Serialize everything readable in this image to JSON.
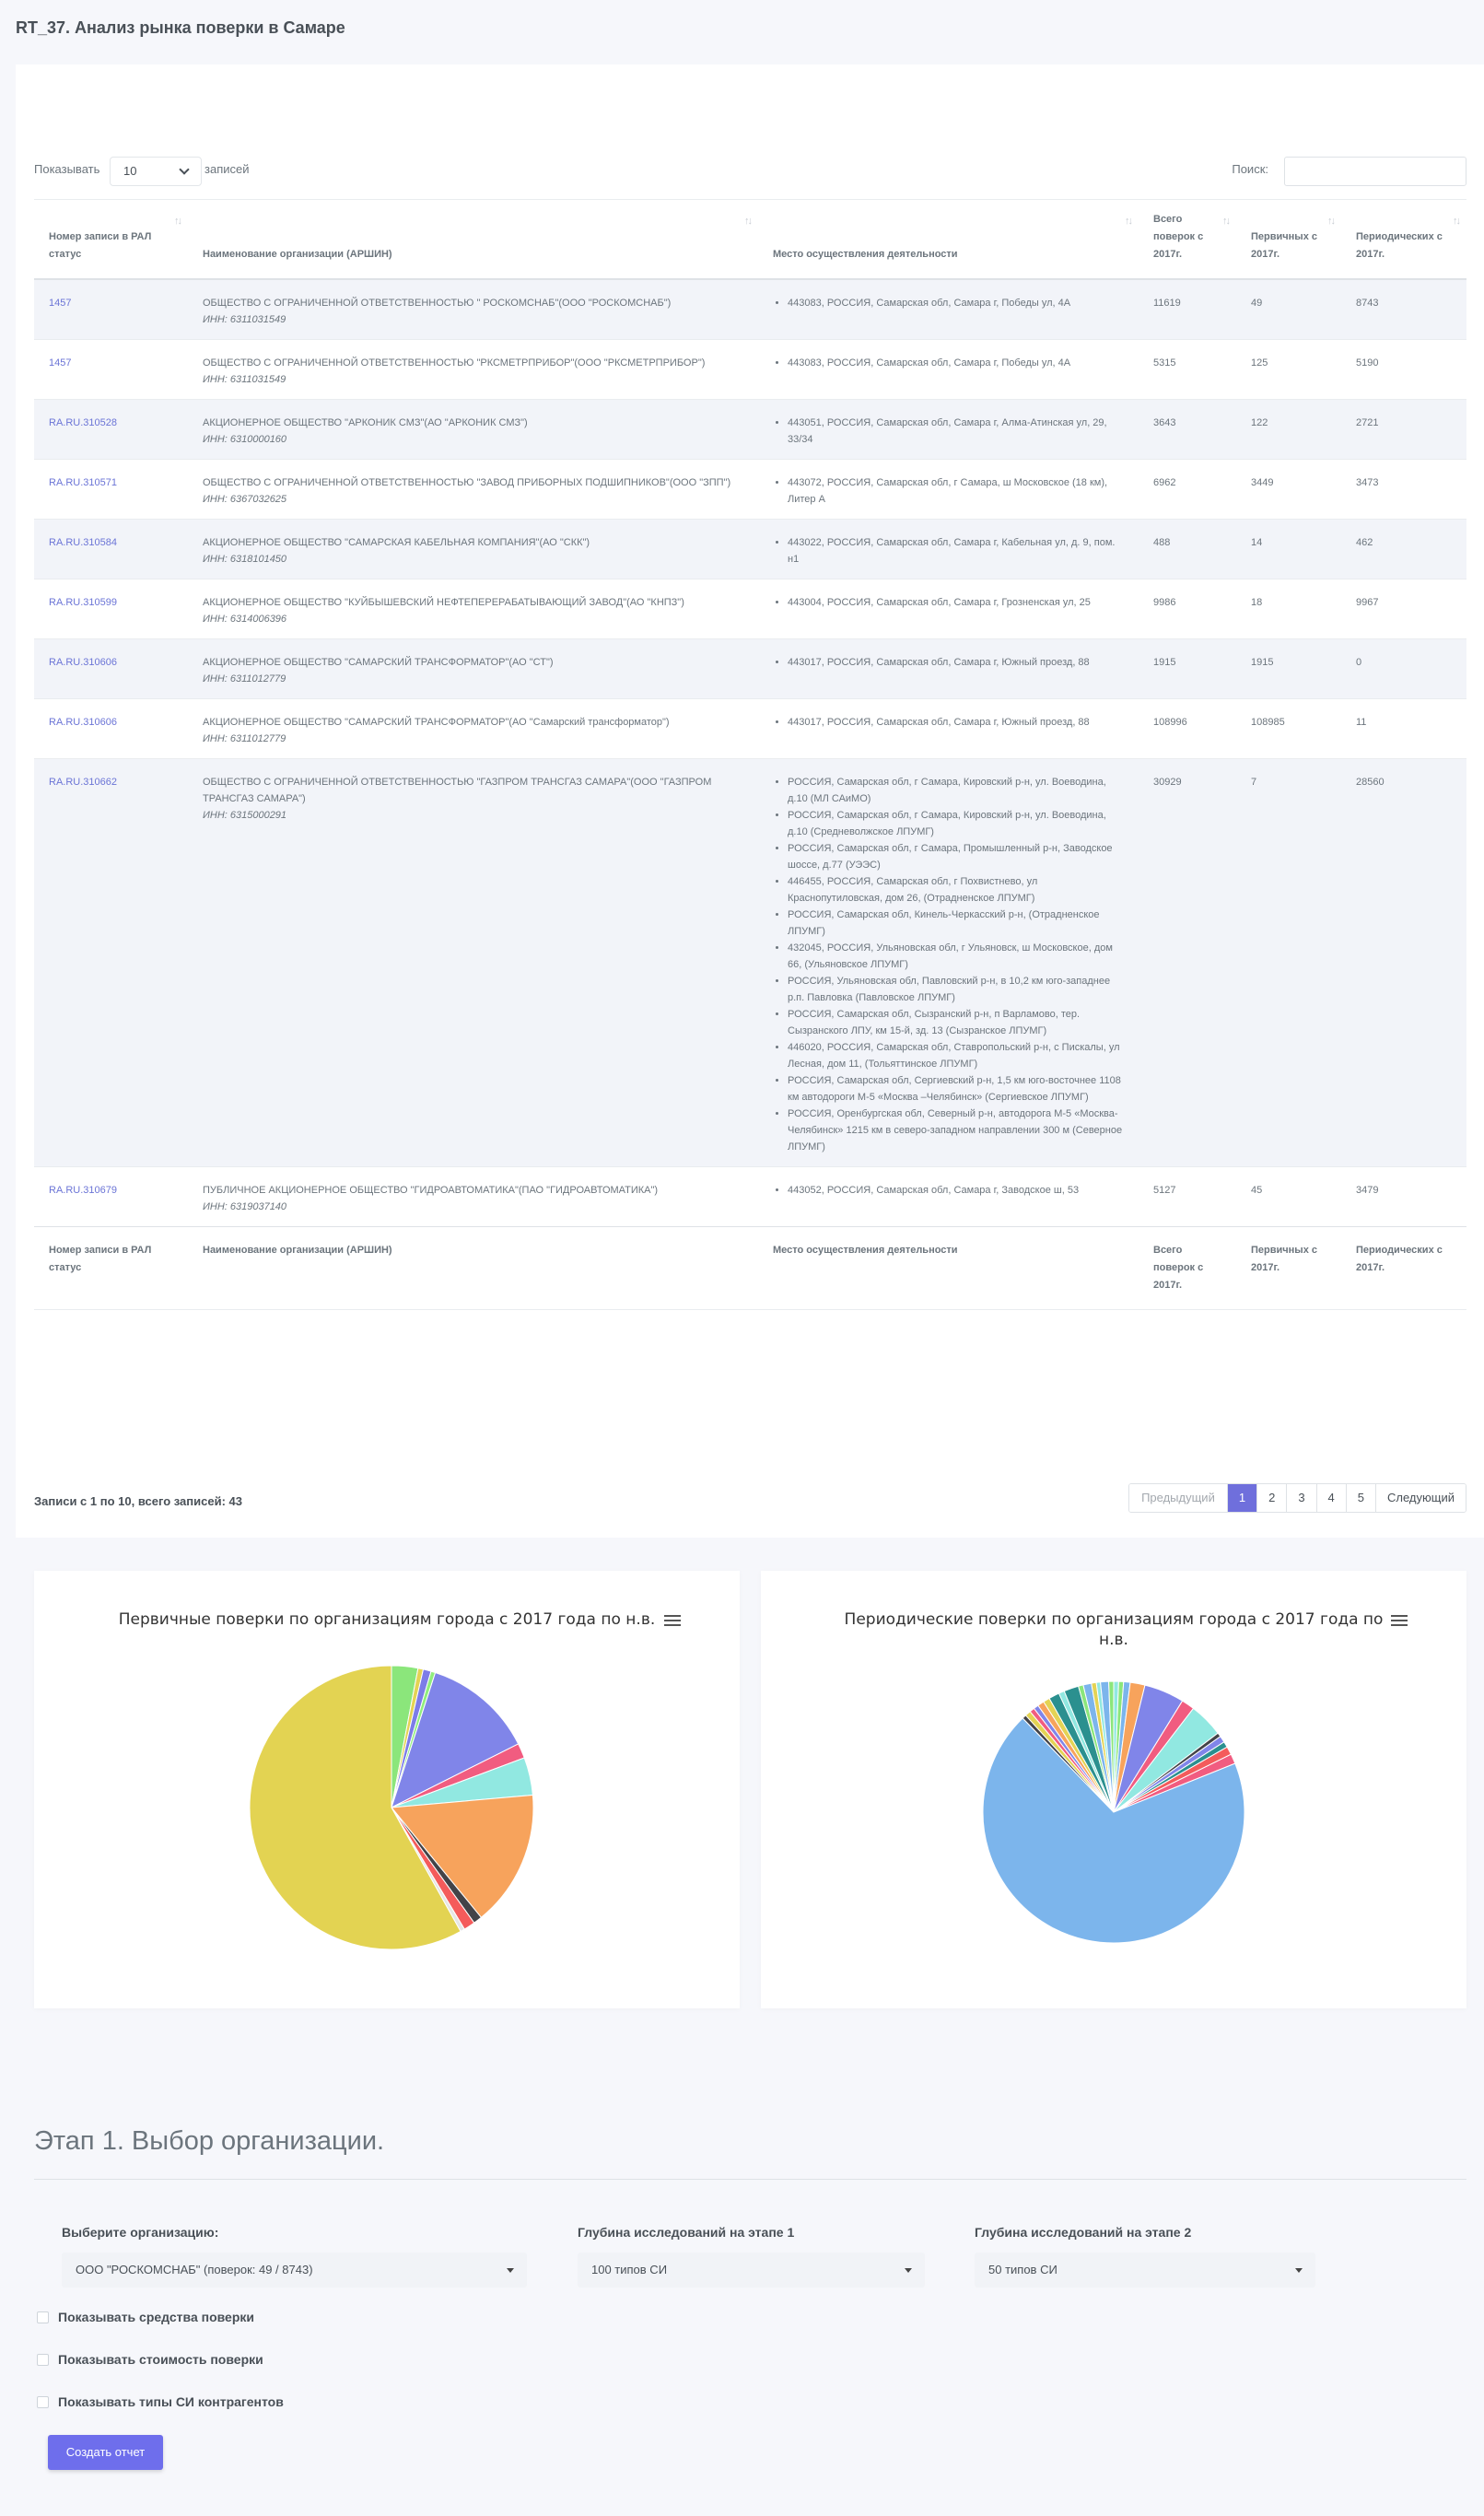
{
  "page": {
    "title": "RT_37. Анализ рынка поверки в Самаре"
  },
  "table_controls": {
    "show_label": "Показывать",
    "page_size": "10",
    "records_label": "записей",
    "search_label": "Поиск:",
    "search_value": ""
  },
  "table": {
    "headers": [
      "Номер записи в РАЛ статус",
      "Наименование организации (АРШИН)",
      "Место осуществления деятельности",
      "Всего поверок с 2017г.",
      "Первичных с 2017г.",
      "Периодических с 2017г."
    ],
    "rows": [
      {
        "reg": "1457",
        "org": "ОБЩЕСТВО С ОГРАНИЧЕННОЙ ОТВЕТСТВЕННОСТЬЮ \" РОСКОМСНАБ\"(ООО \"РОСКОМСНАБ\")",
        "inn": "ИНН: 6311031549",
        "places": [
          "443083, РОССИЯ, Самарская обл, Самара г, Победы ул, 4А"
        ],
        "total": "11619",
        "primary": "49",
        "periodic": "8743"
      },
      {
        "reg": "1457",
        "org": "ОБЩЕСТВО С ОГРАНИЧЕННОЙ ОТВЕТСТВЕННОСТЬЮ \"РКСМЕТРПРИБОР\"(ООО \"РКСМЕТРПРИБОР\")",
        "inn": "ИНН: 6311031549",
        "places": [
          "443083, РОССИЯ, Самарская обл, Самара г, Победы ул, 4А"
        ],
        "total": "5315",
        "primary": "125",
        "periodic": "5190"
      },
      {
        "reg": "RA.RU.310528",
        "org": "АКЦИОНЕРНОЕ ОБЩЕСТВО \"АРКОНИК СМЗ\"(АО \"АРКОНИК СМЗ\")",
        "inn": "ИНН: 6310000160",
        "places": [
          "443051, РОССИЯ, Самарская обл, Самара г, Алма-Атинская ул, 29, 33/34"
        ],
        "total": "3643",
        "primary": "122",
        "periodic": "2721"
      },
      {
        "reg": "RA.RU.310571",
        "org": "ОБЩЕСТВО С ОГРАНИЧЕННОЙ ОТВЕТСТВЕННОСТЬЮ \"ЗАВОД ПРИБОРНЫХ ПОДШИПНИКОВ\"(ООО \"ЗПП\")",
        "inn": "ИНН: 6367032625",
        "places": [
          "443072, РОССИЯ, Самарская обл, г Самара, ш Московское (18 км), Литер А"
        ],
        "total": "6962",
        "primary": "3449",
        "periodic": "3473"
      },
      {
        "reg": "RA.RU.310584",
        "org": "АКЦИОНЕРНОЕ ОБЩЕСТВО \"САМАРСКАЯ КАБЕЛЬНАЯ КОМПАНИЯ\"(АО \"СКК\")",
        "inn": "ИНН: 6318101450",
        "places": [
          "443022, РОССИЯ, Самарская обл, Самара г, Кабельная ул, д. 9, пом. н1"
        ],
        "total": "488",
        "primary": "14",
        "periodic": "462"
      },
      {
        "reg": "RA.RU.310599",
        "org": "АКЦИОНЕРНОЕ ОБЩЕСТВО \"КУЙБЫШЕВСКИЙ НЕФТЕПЕРЕРАБАТЫВАЮЩИЙ ЗАВОД\"(АО \"КНПЗ\")",
        "inn": "ИНН: 6314006396",
        "places": [
          "443004, РОССИЯ, Самарская обл, Самара г, Грозненская ул, 25"
        ],
        "total": "9986",
        "primary": "18",
        "periodic": "9967"
      },
      {
        "reg": "RA.RU.310606",
        "org": "АКЦИОНЕРНОЕ ОБЩЕСТВО \"САМАРСКИЙ ТРАНСФОРМАТОР\"(АО \"СТ\")",
        "inn": "ИНН: 6311012779",
        "places": [
          "443017, РОССИЯ, Самарская обл, Самара г, Южный проезд, 88"
        ],
        "total": "1915",
        "primary": "1915",
        "periodic": "0"
      },
      {
        "reg": "RA.RU.310606",
        "org": "АКЦИОНЕРНОЕ ОБЩЕСТВО \"САМАРСКИЙ ТРАНСФОРМАТОР\"(АО \"Самарский трансформатор\")",
        "inn": "ИНН: 6311012779",
        "places": [
          "443017, РОССИЯ, Самарская обл, Самара г, Южный проезд, 88"
        ],
        "total": "108996",
        "primary": "108985",
        "periodic": "11"
      },
      {
        "reg": "RA.RU.310662",
        "org": "ОБЩЕСТВО С ОГРАНИЧЕННОЙ ОТВЕТСТВЕННОСТЬЮ \"ГАЗПРОМ ТРАНСГАЗ САМАРА\"(ООО \"ГАЗПРОМ ТРАНСГАЗ САМАРА\")",
        "inn": "ИНН: 6315000291",
        "places": [
          "РОССИЯ, Самарская обл, г Самара, Кировский р-н, ул. Воеводина, д.10 (МЛ САиМО)",
          "РОССИЯ, Самарская обл, г Самара, Кировский р-н, ул. Воеводина, д.10 (Средневолжское ЛПУМГ)",
          "РОССИЯ, Самарская обл, г Самара, Промышленный р-н, Заводское шоссе, д.77 (УЭЭС)",
          "446455, РОССИЯ, Самарская обл, г Похвистнево, ул Краснопутиловская, дом 26, (Отрадненское ЛПУМГ)",
          "РОССИЯ, Самарская обл, Кинель-Черкасский р-н, (Отрадненское ЛПУМГ)",
          "432045, РОССИЯ, Ульяновская обл, г Ульяновск, ш Московское, дом 66, (Ульяновское ЛПУМГ)",
          "РОССИЯ, Ульяновская обл, Павловский р-н, в 10,2 км юго-западнее р.п. Павловка (Павловское ЛПУМГ)",
          "РОССИЯ, Самарская обл, Сызранский р-н, п Варламово, тер. Сызранского ЛПУ, км 15-й, зд. 13 (Сызранское ЛПУМГ)",
          "446020, РОССИЯ, Самарская обл, Ставропольский р-н, с Пискалы, ул Лесная, дом 11, (Тольяттинское ЛПУМГ)",
          "РОССИЯ, Самарская обл, Сергиевский р-н, 1,5 км юго-восточнее 1108 км автодороги М-5 «Москва –Челябинск» (Сергиевское ЛПУМГ)",
          "РОССИЯ, Оренбургская обл, Северный р-н, автодорога М-5 «Москва-Челябинск» 1215 км в северо-западном направлении 300 м (Северное ЛПУМГ)"
        ],
        "total": "30929",
        "primary": "7",
        "periodic": "28560"
      },
      {
        "reg": "RA.RU.310679",
        "org": "ПУБЛИЧНОЕ АКЦИОНЕРНОЕ ОБЩЕСТВО \"ГИДРОАВТОМАТИКА\"(ПАО \"ГИДРОАВТОМАТИКА\")",
        "inn": "ИНН: 6319037140",
        "places": [
          "443052, РОССИЯ, Самарская обл, Самара г, Заводское ш, 53"
        ],
        "total": "5127",
        "primary": "45",
        "periodic": "3479"
      }
    ]
  },
  "pagination": {
    "info": "Записи с 1 по 10, всего записей: 43",
    "prev": "Предыдущий",
    "pages": [
      "1",
      "2",
      "3",
      "4",
      "5"
    ],
    "active": "1",
    "next": "Следующий"
  },
  "charts": {
    "primary_title": "Первичные поверки по организациям города с 2017 года по н.в.",
    "periodic_title_line1": "Периодические поверки по организациям города с 2017 года по",
    "periodic_title_line2": "н.в."
  },
  "chart_data": [
    {
      "type": "pie",
      "title": "Первичные поверки по организациям города с 2017 года по н.в.",
      "slices": [
        {
          "value": 3.0,
          "color": "#8be67b"
        },
        {
          "value": 0.6,
          "color": "#e4d354"
        },
        {
          "value": 0.9,
          "color": "#7c7ce8"
        },
        {
          "value": 0.5,
          "color": "#90ed7d"
        },
        {
          "value": 12.6,
          "color": "#8085e9"
        },
        {
          "value": 1.7,
          "color": "#f15c80"
        },
        {
          "value": 4.3,
          "color": "#91e8e1"
        },
        {
          "value": 15.5,
          "color": "#f7a35c"
        },
        {
          "value": 1.0,
          "color": "#434348"
        },
        {
          "value": 1.3,
          "color": "#f45b5b"
        },
        {
          "value": 0.5,
          "color": "#e6e6e6"
        },
        {
          "value": 58.1,
          "color": "#e3d352"
        }
      ]
    },
    {
      "type": "pie",
      "title": "Периодические поверки по организациям города с 2017 года по н.в.",
      "slices": [
        {
          "value": 0.6,
          "color": "#91e8e1"
        },
        {
          "value": 0.6,
          "color": "#8be67b"
        },
        {
          "value": 0.8,
          "color": "#7cb5ec"
        },
        {
          "value": 1.8,
          "color": "#f7a35c"
        },
        {
          "value": 4.9,
          "color": "#8085e9"
        },
        {
          "value": 1.6,
          "color": "#f15c80"
        },
        {
          "value": 4.2,
          "color": "#91e8e1"
        },
        {
          "value": 0.5,
          "color": "#434348"
        },
        {
          "value": 0.8,
          "color": "#8085e9"
        },
        {
          "value": 0.7,
          "color": "#2b908f"
        },
        {
          "value": 1.0,
          "color": "#f45b5b"
        },
        {
          "value": 1.2,
          "color": "#f15c80"
        },
        {
          "value": 68.0,
          "color": "#7cb5ec"
        },
        {
          "value": 0.5,
          "color": "#434348"
        },
        {
          "value": 0.7,
          "color": "#e4d354"
        },
        {
          "value": 0.6,
          "color": "#f15c80"
        },
        {
          "value": 0.6,
          "color": "#8085e9"
        },
        {
          "value": 0.8,
          "color": "#f7a35c"
        },
        {
          "value": 0.8,
          "color": "#e4d354"
        },
        {
          "value": 1.3,
          "color": "#2b908f"
        },
        {
          "value": 0.7,
          "color": "#91e8e1"
        },
        {
          "value": 1.8,
          "color": "#2b908f"
        },
        {
          "value": 0.6,
          "color": "#8be67b"
        },
        {
          "value": 1.0,
          "color": "#7cb5ec"
        },
        {
          "value": 0.6,
          "color": "#e4d354"
        },
        {
          "value": 0.5,
          "color": "#91e8e1"
        },
        {
          "value": 1.0,
          "color": "#7cb5ec"
        },
        {
          "value": 0.6,
          "color": "#8be67b"
        }
      ]
    }
  ],
  "stage": {
    "title": "Этап 1. Выбор организации.",
    "org_label": "Выберите организацию:",
    "org_value": "ООО \"РОСКОМСНАБ\" (поверок: 49 / 8743)",
    "depth1_label": "Глубина исследований на этапе 1",
    "depth1_value": "100 типов СИ",
    "depth2_label": "Глубина исследований на этапе 2",
    "depth2_value": "50 типов СИ",
    "chk_tools": "Показывать средства поверки",
    "chk_cost": "Показывать стоимость поверки",
    "chk_types": "Показывать типы СИ контрагентов",
    "create_button": "Создать отчет"
  },
  "colors": {
    "accent": "#6e6eec",
    "link": "#6b74d6",
    "stripe": "#f2f4f9"
  }
}
